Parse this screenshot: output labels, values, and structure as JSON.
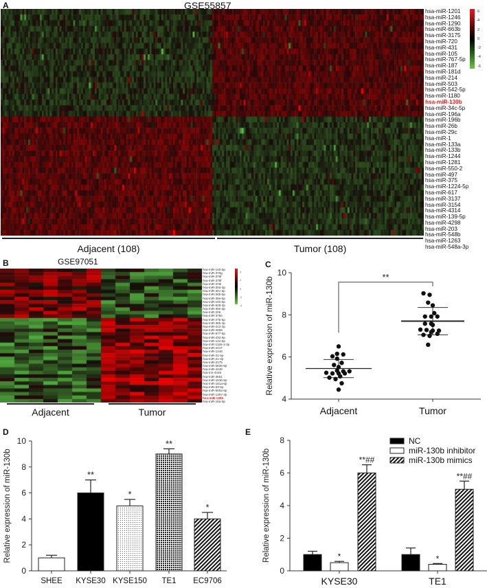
{
  "panels": {
    "A": {
      "letter": "A",
      "title": "GSE55857",
      "groups": [
        {
          "label": "Adjacent (108)",
          "n": 108
        },
        {
          "label": "Tumor (108)",
          "n": 108
        }
      ],
      "rows": [
        "hsa-miR-1201",
        "hsa-miR-1246",
        "hsa-miR-1290",
        "hsa-miR-663b",
        "hsa-miR-3175",
        "hsa-miR-720",
        "hsa-miR-431",
        "hsa-miR-105",
        "hsa-miR-767-5p",
        "hsa-miR-187",
        "hsa-miR-181d",
        "hsa-miR-214",
        "hsa-miR-503",
        "hsa-miR-542-5p",
        "hsa-miR-1180",
        "hsa-miR-130b",
        "hsa-miR-34c-5p",
        "hsa-miR-196a",
        "hsa-miR-196b",
        "hsa-miR-26b",
        "hsa-miR-29c",
        "hsa-miR-1",
        "hsa-miR-133a",
        "hsa-miR-133b",
        "hsa-miR-1244",
        "hsa-miR-1281",
        "hsa-miR-550-2",
        "hsa-miR-497",
        "hsa-miR-375",
        "hsa-miR-1224-5p",
        "hsa-miR-617",
        "hsa-miR-3137",
        "hsa-miR-3154",
        "hsa-miR-4314",
        "hsa-miR-139-5p",
        "hsa-miR-4298",
        "hsa-miR-203",
        "hsa-miR-548b",
        "hsa-miR-1263",
        "hsa-miR-548a-3p"
      ],
      "highlight_row": "hsa-miR-130b",
      "up_in_tumor_rows": 19,
      "legend": {
        "ticks": [
          "6",
          "4",
          "2",
          "0",
          "-2",
          "-4",
          "-6"
        ],
        "high_color": "#e8191c",
        "mid_color": "#000000",
        "low_color": "#6cc24a"
      }
    },
    "B": {
      "letter": "B",
      "title": "GSE97051",
      "groups": [
        {
          "label": "Adjacent",
          "n": 7
        },
        {
          "label": "Tumor",
          "n": 7
        }
      ],
      "rows": [
        "hsa-miR-140-5p",
        "hsa-miR-376g",
        "hsa-miR-376f",
        "hsa-miR-378f",
        "hsa-miR-378i",
        "hsa-miR-30a-3p",
        "hsa-miR-30c-5p",
        "hsa-miR-30b-5p",
        "hsa-miR-30e-5p",
        "hsa-miR-192-5p",
        "hsa-miR-628-3p",
        "hsa-miR-30e-3p",
        "hsa-miR-206",
        "hsa-miR-378e",
        "hsa-miR-27b-5p",
        "hsa-miR-30b-3p",
        "hsa-miR-212-3p",
        "hsa-miR-4656",
        "hsa-miR-877-5p",
        "hsa-miR-432-5p",
        "hsa-miR-134-5p",
        "hsa-miR-1185-1-3p",
        "hsa-miR-4417",
        "hsa-miR-1246",
        "hsa-miR-21-5p",
        "hsa-miR-21-3p",
        "hsa-miR-3175",
        "hsa-miR-6836-5p",
        "hsa-miR-4449",
        "hsa-mir-4449",
        "hsa-miR-3651",
        "hsa-miR-181b-5p",
        "hsa-miR-181a-5p",
        "hsa-miR-93-5p",
        "hsa-miR-500a-5p",
        "hsa-miR-1307-3p",
        "hsa-miR-130b",
        "hsa-miR-18a-5p"
      ],
      "highlight_row": "hsa-miR-130b",
      "down_in_tumor_rows": 14,
      "legend": {
        "ticks": [
          "4",
          "2",
          "0",
          "-2",
          "-4"
        ]
      }
    }
  },
  "chart_data": [
    {
      "panel": "C",
      "type": "scatter",
      "title": "",
      "xlabel": "",
      "ylabel": "Relative expression of miR-130b",
      "categories": [
        "Adjacent",
        "Tumor"
      ],
      "ylim": [
        4,
        10
      ],
      "yticks": [
        4,
        6,
        8,
        10
      ],
      "series": [
        {
          "name": "Adjacent",
          "mean": 5.45,
          "sd_low": 5.02,
          "sd_high": 5.88,
          "values": [
            6.5,
            6.15,
            6.12,
            6.03,
            5.92,
            5.72,
            5.62,
            5.52,
            5.35,
            5.32,
            5.32,
            5.25,
            5.22,
            5.22,
            5.22,
            5.08,
            5.02,
            4.95,
            4.75,
            4.45
          ]
        },
        {
          "name": "Tumor",
          "mean": 7.7,
          "sd_low": 7.05,
          "sd_high": 8.35,
          "values": [
            9.02,
            8.95,
            8.58,
            8.45,
            8.08,
            7.92,
            7.92,
            7.92,
            7.58,
            7.58,
            7.52,
            7.3,
            7.28,
            7.25,
            7.25,
            7.18,
            7.1,
            7.05,
            7.0,
            6.58
          ]
        }
      ],
      "annotations": [
        {
          "text": "**",
          "between": [
            "Adjacent",
            "Tumor"
          ]
        }
      ],
      "grid": false
    },
    {
      "panel": "D",
      "type": "bar",
      "title": "",
      "xlabel": "",
      "ylabel": "Relative expression of miR-130b",
      "categories": [
        "SHEE",
        "KYSE30",
        "KYSE150",
        "TE1",
        "EC9706"
      ],
      "values": [
        1.0,
        6.0,
        5.0,
        9.0,
        4.0
      ],
      "errors": [
        0.2,
        1.0,
        0.5,
        0.4,
        0.5
      ],
      "significance": [
        "",
        "**",
        "*",
        "**",
        "*"
      ],
      "fills": [
        "white",
        "black",
        "dotted",
        "checkered",
        "diagonal-hatch"
      ],
      "ylim": [
        0,
        10
      ],
      "yticks": [
        0,
        2,
        4,
        6,
        8,
        10
      ],
      "grid": false
    },
    {
      "panel": "E",
      "type": "bar",
      "title": "",
      "xlabel": "",
      "ylabel": "Relative expression of miR-130b",
      "categories": [
        "KYSE30",
        "TE1"
      ],
      "series": [
        {
          "name": "NC",
          "values": [
            1.0,
            1.0
          ],
          "errors": [
            0.2,
            0.4
          ],
          "significance": [
            "",
            ""
          ],
          "fill": "black"
        },
        {
          "name": "miR-130b inhibitor",
          "values": [
            0.5,
            0.4
          ],
          "errors": [
            0.08,
            0.05
          ],
          "significance": [
            "*",
            "*"
          ],
          "fill": "white"
        },
        {
          "name": "miR-130b mimics",
          "values": [
            6.0,
            5.0
          ],
          "errors": [
            0.5,
            0.5
          ],
          "significance": [
            "**##",
            "**##"
          ],
          "fill": "diagonal-hatch"
        }
      ],
      "ylim": [
        0,
        8
      ],
      "yticks": [
        0,
        2,
        4,
        6,
        8
      ],
      "legend_position": "top-right",
      "grid": false
    }
  ],
  "labels": {
    "C": "C",
    "D": "D",
    "E": "E"
  }
}
